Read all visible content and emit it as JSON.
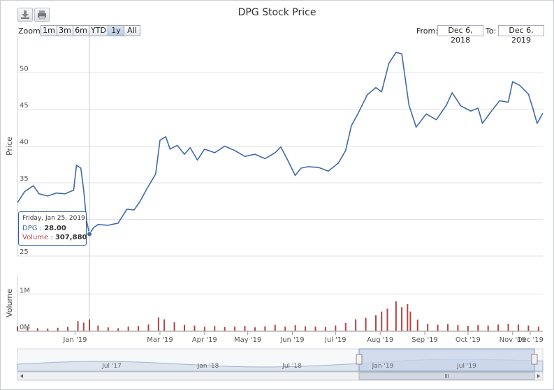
{
  "title": "DPG Stock Price",
  "range_selector": {
    "zoom_label": "Zoom",
    "buttons": [
      "1m",
      "3m",
      "6m",
      "YTD",
      "1y",
      "All"
    ],
    "active": "1y",
    "from_label": "From:",
    "from_value": "Dec 6, 2018",
    "to_label": "To:",
    "to_value": "Dec 6, 2019"
  },
  "toolbar": {
    "download_icon": "download-icon",
    "print_icon": "print-icon"
  },
  "colors": {
    "price_line": "#3f6aa7",
    "volume_bar": "#b44340",
    "navigator_fill": "#c5d3e8",
    "tooltip_border": "#2f5f9a"
  },
  "tooltip": {
    "date": "Friday, Jan 25, 2019",
    "price_label": "DPG :",
    "price_value": "28.00",
    "volume_label": "Volume :",
    "volume_value": "307,880"
  },
  "navigator": {
    "labels": [
      "Jul '17",
      "Jan '18",
      "Jul '18",
      "Jan '19",
      "Jul '19"
    ],
    "scrollbar_icon": "scrollbar-grip-icon"
  },
  "chart_data": [
    {
      "type": "line",
      "title": "DPG Stock Price",
      "ylabel": "Price",
      "ylim": [
        25,
        55
      ],
      "yticks": [
        25,
        30,
        35,
        40,
        45,
        50
      ],
      "grid": true,
      "x_labels": [
        "Jan '19",
        "Mar '19",
        "Apr '19",
        "May '19",
        "Jun '19",
        "Jul '19",
        "Aug '19",
        "Sep '19",
        "Oct '19",
        "Nov '19",
        "Dec '19"
      ],
      "series": [
        {
          "name": "DPG",
          "points": [
            [
              "2018-12-06",
              32.3
            ],
            [
              "2018-12-11",
              33.8
            ],
            [
              "2018-12-17",
              34.6
            ],
            [
              "2018-12-21",
              33.5
            ],
            [
              "2018-12-27",
              33.2
            ],
            [
              "2019-01-02",
              33.6
            ],
            [
              "2019-01-08",
              33.5
            ],
            [
              "2019-01-14",
              34.0
            ],
            [
              "2019-01-16",
              37.4
            ],
            [
              "2019-01-19",
              37.0
            ],
            [
              "2019-01-21",
              34.0
            ],
            [
              "2019-01-23",
              29.8
            ],
            [
              "2019-01-25",
              28.0
            ],
            [
              "2019-01-28",
              28.9
            ],
            [
              "2019-01-31",
              29.3
            ],
            [
              "2019-02-07",
              29.2
            ],
            [
              "2019-02-14",
              29.5
            ],
            [
              "2019-02-20",
              31.4
            ],
            [
              "2019-02-25",
              31.3
            ],
            [
              "2019-03-01",
              32.4
            ],
            [
              "2019-03-06",
              34.2
            ],
            [
              "2019-03-12",
              36.2
            ],
            [
              "2019-03-15",
              40.8
            ],
            [
              "2019-03-19",
              41.3
            ],
            [
              "2019-03-22",
              39.6
            ],
            [
              "2019-03-27",
              40.1
            ],
            [
              "2019-04-01",
              38.9
            ],
            [
              "2019-04-05",
              39.8
            ],
            [
              "2019-04-10",
              38.1
            ],
            [
              "2019-04-15",
              39.6
            ],
            [
              "2019-04-22",
              39.1
            ],
            [
              "2019-04-29",
              40.0
            ],
            [
              "2019-05-06",
              39.4
            ],
            [
              "2019-05-13",
              38.6
            ],
            [
              "2019-05-20",
              38.9
            ],
            [
              "2019-05-27",
              38.3
            ],
            [
              "2019-06-03",
              39.1
            ],
            [
              "2019-06-07",
              39.9
            ],
            [
              "2019-06-12",
              38.0
            ],
            [
              "2019-06-17",
              36.0
            ],
            [
              "2019-06-21",
              37.0
            ],
            [
              "2019-06-26",
              37.2
            ],
            [
              "2019-07-03",
              37.1
            ],
            [
              "2019-07-10",
              36.6
            ],
            [
              "2019-07-17",
              37.7
            ],
            [
              "2019-07-22",
              39.4
            ],
            [
              "2019-07-26",
              42.8
            ],
            [
              "2019-07-31",
              44.6
            ],
            [
              "2019-08-06",
              47.0
            ],
            [
              "2019-08-12",
              48.0
            ],
            [
              "2019-08-16",
              47.4
            ],
            [
              "2019-08-21",
              51.3
            ],
            [
              "2019-08-26",
              52.8
            ],
            [
              "2019-08-30",
              52.6
            ],
            [
              "2019-09-04",
              45.6
            ],
            [
              "2019-09-09",
              42.6
            ],
            [
              "2019-09-16",
              44.4
            ],
            [
              "2019-09-23",
              43.6
            ],
            [
              "2019-09-30",
              45.6
            ],
            [
              "2019-10-04",
              47.3
            ],
            [
              "2019-10-10",
              45.5
            ],
            [
              "2019-10-17",
              44.8
            ],
            [
              "2019-10-22",
              45.2
            ],
            [
              "2019-10-25",
              43.1
            ],
            [
              "2019-10-31",
              44.7
            ],
            [
              "2019-11-06",
              46.2
            ],
            [
              "2019-11-12",
              46.0
            ],
            [
              "2019-11-15",
              48.8
            ],
            [
              "2019-11-20",
              48.3
            ],
            [
              "2019-11-26",
              47.1
            ],
            [
              "2019-11-29",
              45.2
            ],
            [
              "2019-12-02",
              43.1
            ],
            [
              "2019-12-06",
              44.5
            ]
          ]
        }
      ]
    },
    {
      "type": "bar",
      "ylabel": "Volume",
      "yticks_labels": [
        "0M",
        "1M"
      ],
      "ylim": [
        0,
        1500000
      ],
      "series": [
        {
          "name": "Volume",
          "points": [
            [
              "2018-12-06",
              120000
            ],
            [
              "2018-12-13",
              90000
            ],
            [
              "2018-12-20",
              70000
            ],
            [
              "2018-12-27",
              60000
            ],
            [
              "2019-01-03",
              80000
            ],
            [
              "2019-01-10",
              100000
            ],
            [
              "2019-01-17",
              260000
            ],
            [
              "2019-01-21",
              220000
            ],
            [
              "2019-01-25",
              307880
            ],
            [
              "2019-01-31",
              140000
            ],
            [
              "2019-02-07",
              90000
            ],
            [
              "2019-02-14",
              70000
            ],
            [
              "2019-02-21",
              110000
            ],
            [
              "2019-02-28",
              130000
            ],
            [
              "2019-03-07",
              170000
            ],
            [
              "2019-03-14",
              360000
            ],
            [
              "2019-03-18",
              310000
            ],
            [
              "2019-03-25",
              230000
            ],
            [
              "2019-04-01",
              160000
            ],
            [
              "2019-04-08",
              140000
            ],
            [
              "2019-04-15",
              110000
            ],
            [
              "2019-04-22",
              130000
            ],
            [
              "2019-04-29",
              100000
            ],
            [
              "2019-05-06",
              110000
            ],
            [
              "2019-05-13",
              130000
            ],
            [
              "2019-05-20",
              90000
            ],
            [
              "2019-05-27",
              120000
            ],
            [
              "2019-06-03",
              160000
            ],
            [
              "2019-06-10",
              110000
            ],
            [
              "2019-06-17",
              150000
            ],
            [
              "2019-06-24",
              120000
            ],
            [
              "2019-07-01",
              110000
            ],
            [
              "2019-07-08",
              100000
            ],
            [
              "2019-07-15",
              140000
            ],
            [
              "2019-07-22",
              210000
            ],
            [
              "2019-07-29",
              310000
            ],
            [
              "2019-08-05",
              350000
            ],
            [
              "2019-08-12",
              420000
            ],
            [
              "2019-08-16",
              520000
            ],
            [
              "2019-08-20",
              600000
            ],
            [
              "2019-08-26",
              800000
            ],
            [
              "2019-08-30",
              640000
            ],
            [
              "2019-09-03",
              720000
            ],
            [
              "2019-09-05",
              520000
            ],
            [
              "2019-09-10",
              300000
            ],
            [
              "2019-09-17",
              190000
            ],
            [
              "2019-09-24",
              160000
            ],
            [
              "2019-10-01",
              180000
            ],
            [
              "2019-10-08",
              150000
            ],
            [
              "2019-10-15",
              130000
            ],
            [
              "2019-10-22",
              150000
            ],
            [
              "2019-10-29",
              140000
            ],
            [
              "2019-11-05",
              170000
            ],
            [
              "2019-11-12",
              190000
            ],
            [
              "2019-11-19",
              170000
            ],
            [
              "2019-11-26",
              140000
            ],
            [
              "2019-12-03",
              110000
            ]
          ]
        }
      ]
    }
  ]
}
